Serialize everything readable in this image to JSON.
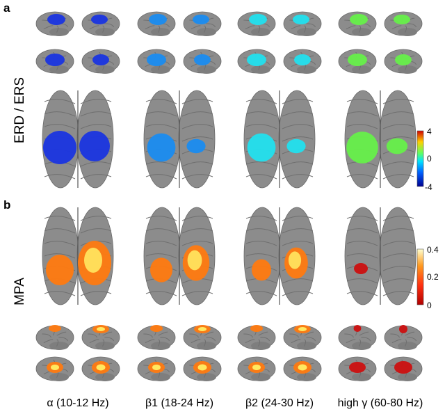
{
  "panels": {
    "a": {
      "letter": "a",
      "row_label": "ERD / ERS",
      "colorbar": {
        "max": "4",
        "mid": "0",
        "min": "-4"
      },
      "colors": {
        "alpha": "#1a35e0",
        "beta1": "#1a8cf0",
        "beta2": "#22e0ee",
        "gamma": "#66f04a"
      }
    },
    "b": {
      "letter": "b",
      "row_label": "MPA",
      "colorbar": {
        "max": "0.4",
        "mid": "0.2",
        "min": "0"
      },
      "colors": {
        "hot_low": "#cc1010",
        "hot_mid": "#ff7a10",
        "hot_high": "#ffe860"
      }
    }
  },
  "bands": [
    {
      "label": "α (10-12 Hz)"
    },
    {
      "label": "β1 (18-24 Hz)"
    },
    {
      "label": "β2 (24-30 Hz)"
    },
    {
      "label": "high γ (60-80 Hz)"
    }
  ],
  "brain_color": "#8c8c8c"
}
